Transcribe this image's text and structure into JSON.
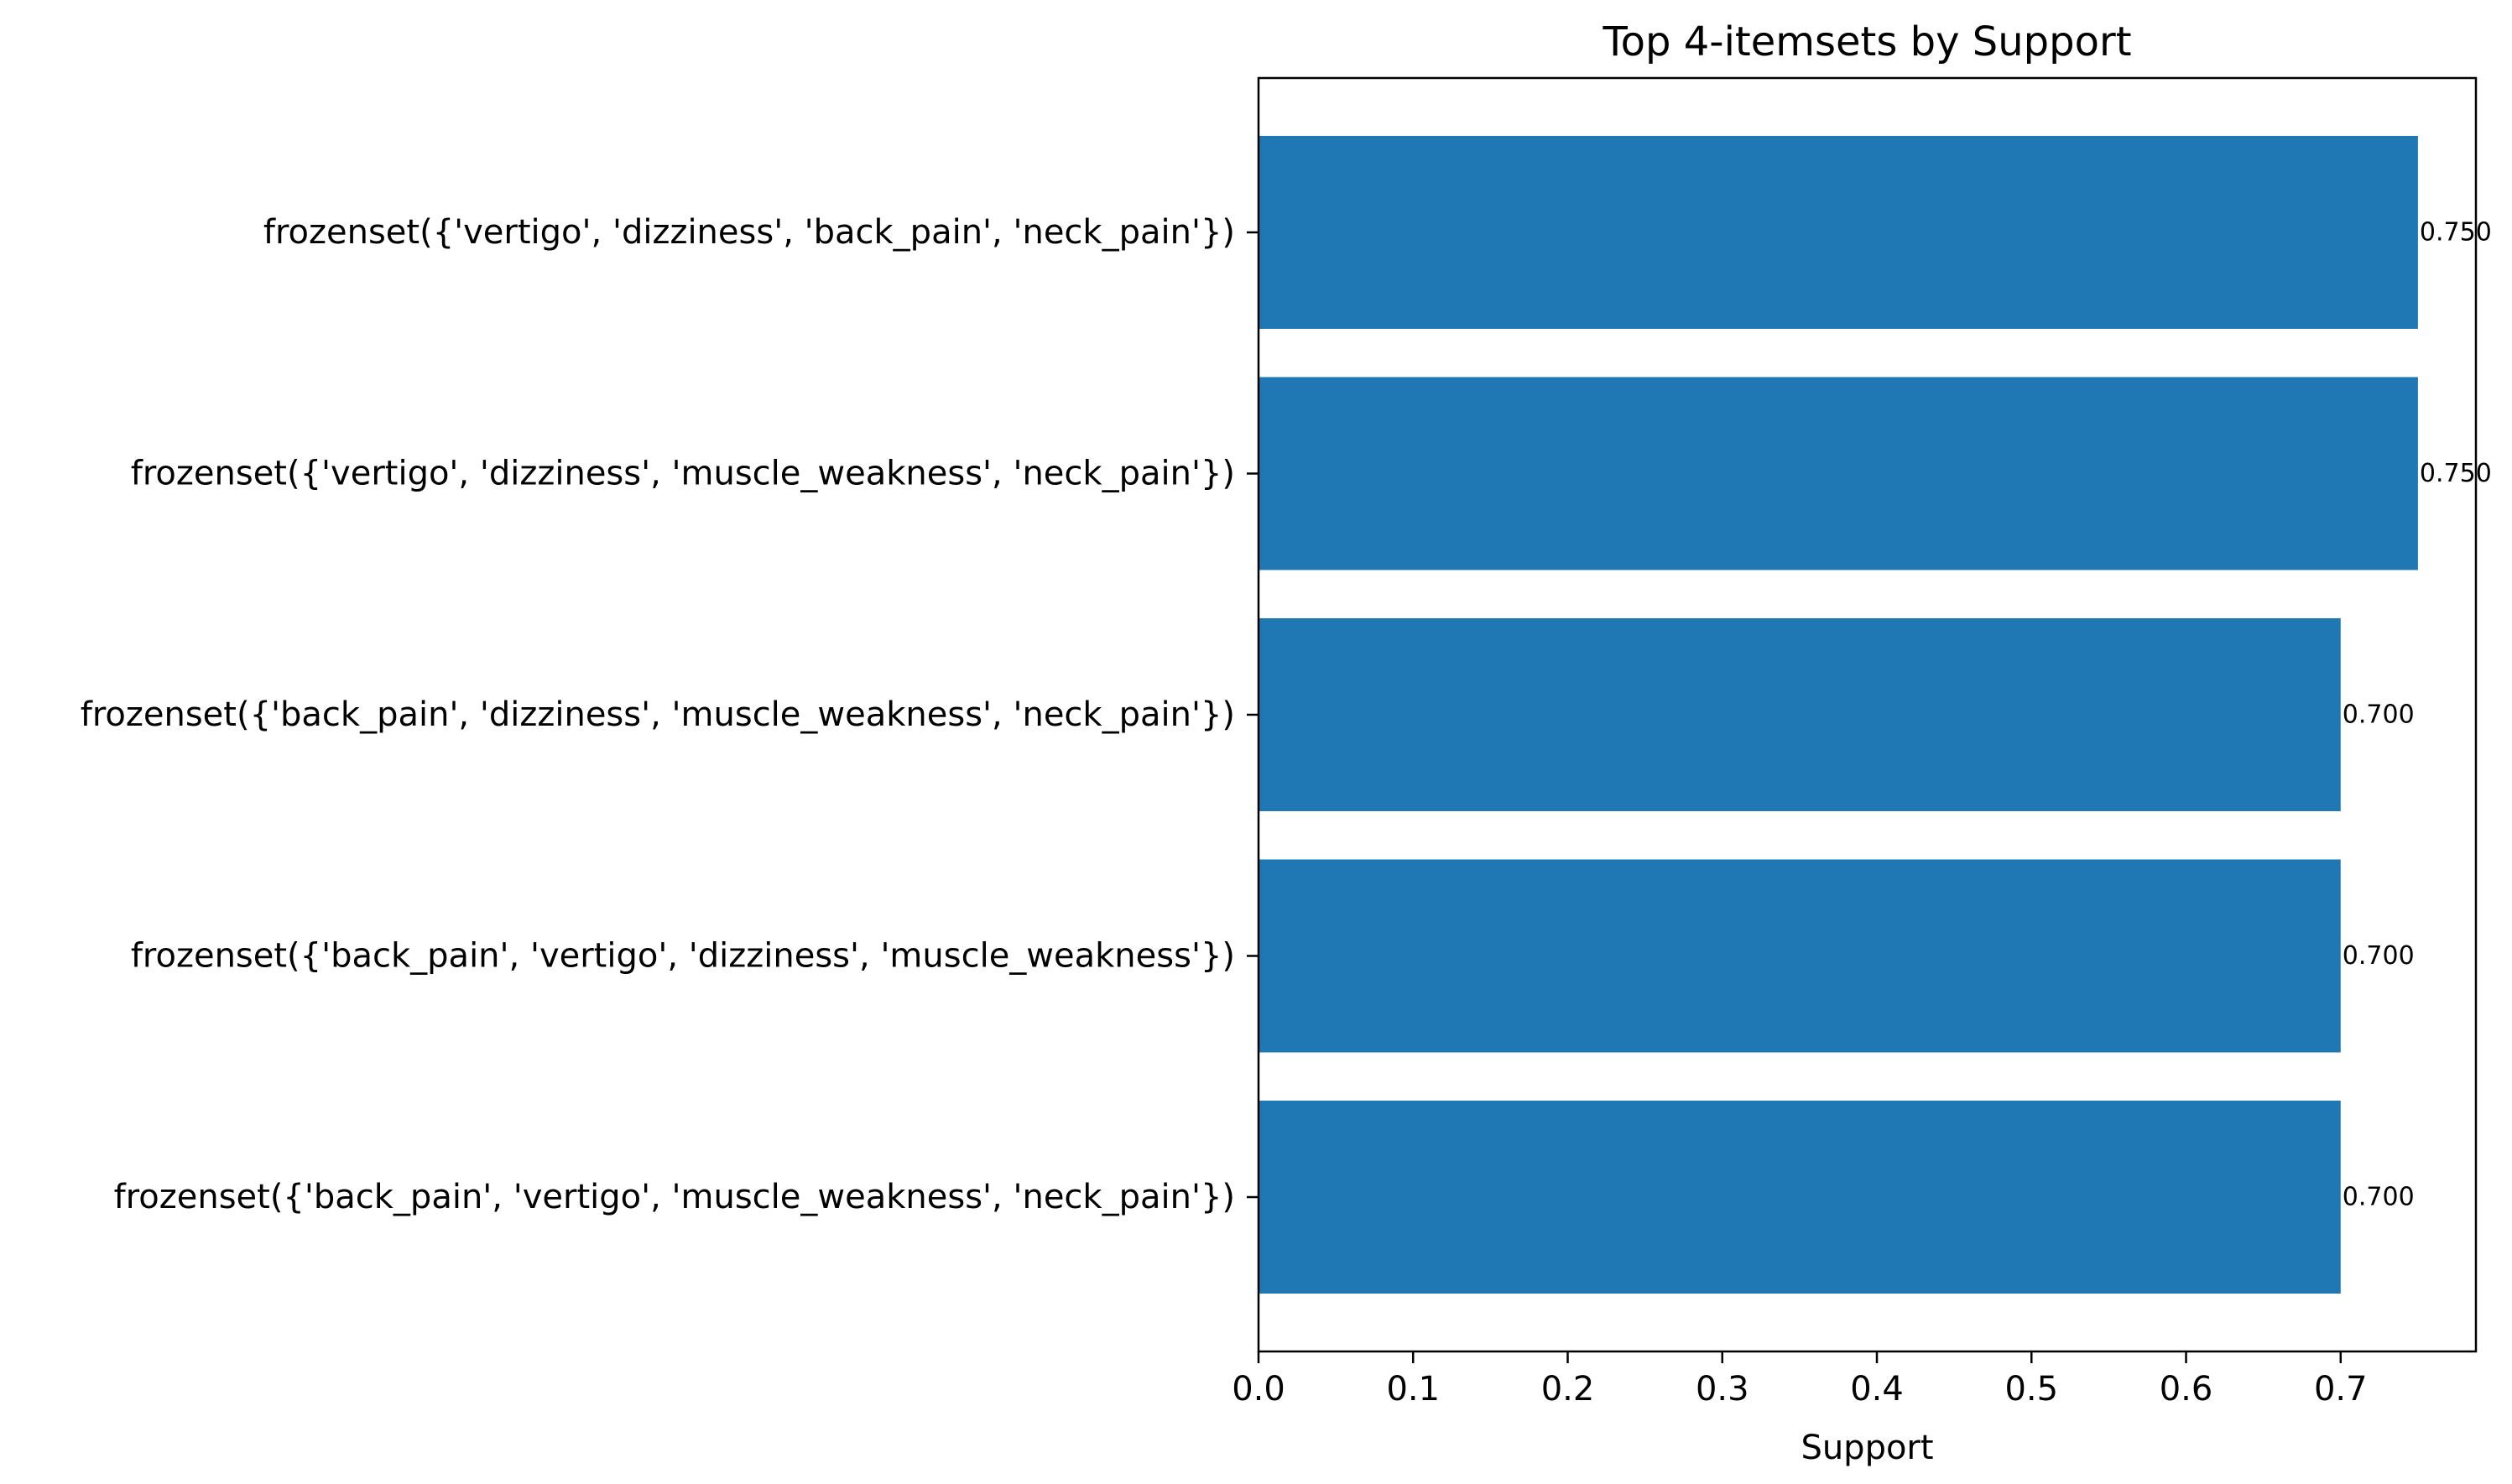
{
  "chart_data": {
    "type": "bar",
    "orientation": "horizontal",
    "title": "Top 4-itemsets by Support",
    "xlabel": "Support",
    "ylabel": "",
    "categories": [
      "frozenset({'vertigo', 'dizziness', 'back_pain', 'neck_pain'})",
      "frozenset({'vertigo', 'dizziness', 'muscle_weakness', 'neck_pain'})",
      "frozenset({'back_pain', 'dizziness', 'muscle_weakness', 'neck_pain'})",
      "frozenset({'back_pain', 'vertigo', 'dizziness', 'muscle_weakness'})",
      "frozenset({'back_pain', 'vertigo', 'muscle_weakness', 'neck_pain'})"
    ],
    "values": [
      0.75,
      0.75,
      0.7,
      0.7,
      0.7
    ],
    "value_labels": [
      "0.750",
      "0.750",
      "0.700",
      "0.700",
      "0.700"
    ],
    "xlim": [
      0,
      0.7875
    ],
    "xticks": [
      0.0,
      0.1,
      0.2,
      0.3,
      0.4,
      0.5,
      0.6,
      0.7
    ],
    "xtick_labels": [
      "0.0",
      "0.1",
      "0.2",
      "0.3",
      "0.4",
      "0.5",
      "0.6",
      "0.7"
    ],
    "grid": false,
    "legend": "none",
    "bar_color": "#1f77b4"
  }
}
